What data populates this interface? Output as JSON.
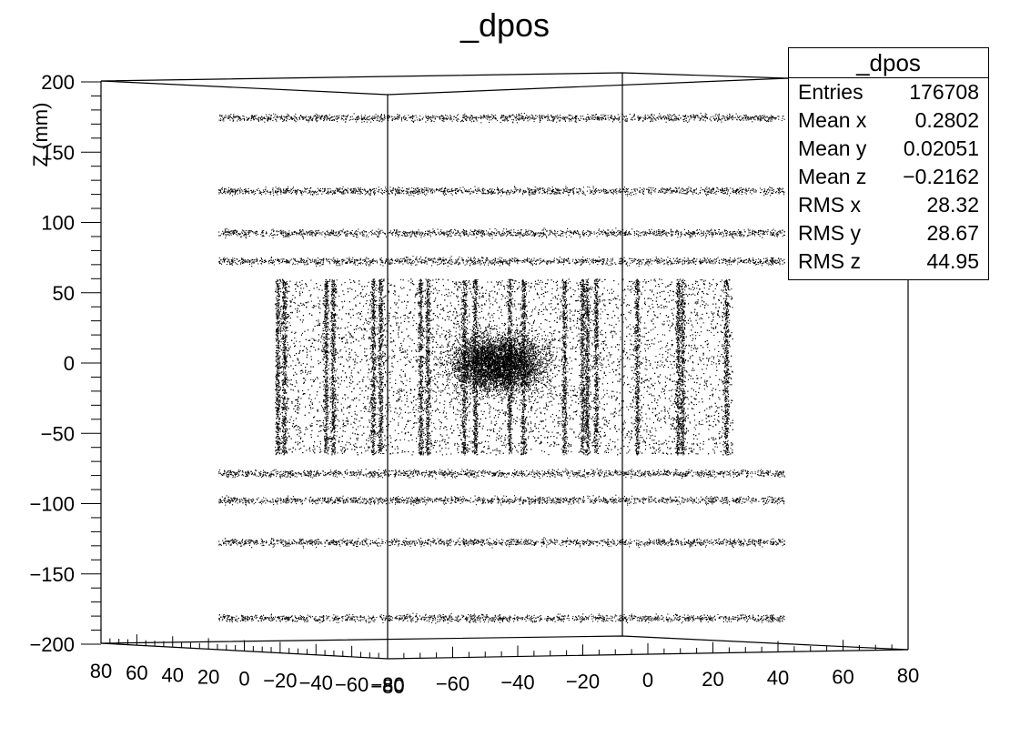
{
  "chart_data": {
    "type": "scatter",
    "title": "_dpos",
    "zlabel": "Z (mm)",
    "xlabel": "",
    "ylabel": "",
    "zlim": [
      -200,
      200
    ],
    "x_ticks": [
      80,
      60,
      40,
      20,
      0,
      -20,
      -40,
      -60,
      -80
    ],
    "y_ticks": [
      -80,
      -60,
      -40,
      -20,
      0,
      20,
      40,
      60,
      80
    ],
    "z_ticks": [
      200,
      150,
      100,
      50,
      0,
      -50,
      -100,
      -150,
      -200
    ],
    "z_tick_labels": [
      "200",
      "150",
      "100",
      "50",
      "0",
      "−50",
      "−100",
      "−150",
      "−200"
    ],
    "x_tick_labels": [
      "80",
      "60",
      "40",
      "20",
      "0",
      "−20",
      "−40",
      "−60",
      "−80"
    ],
    "y_tick_labels": [
      "−80",
      "−60",
      "−40",
      "−20",
      "0",
      "20",
      "40",
      "60",
      "80"
    ],
    "layers_z": [
      175,
      123,
      93,
      73,
      -78,
      -97,
      -127,
      -181
    ],
    "core": {
      "z_range": [
        -65,
        60
      ]
    },
    "marker_color": "#000000",
    "legend": "top-right"
  },
  "stats": {
    "title": "_dpos",
    "rows": [
      {
        "label": "Entries",
        "value": "176708"
      },
      {
        "label": "Mean x",
        "value": "0.2802"
      },
      {
        "label": "Mean y",
        "value": "0.02051"
      },
      {
        "label": "Mean z",
        "value": "−0.2162"
      },
      {
        "label": "RMS x",
        "value": "28.32"
      },
      {
        "label": "RMS y",
        "value": "28.67"
      },
      {
        "label": "RMS z",
        "value": "44.95"
      }
    ]
  }
}
